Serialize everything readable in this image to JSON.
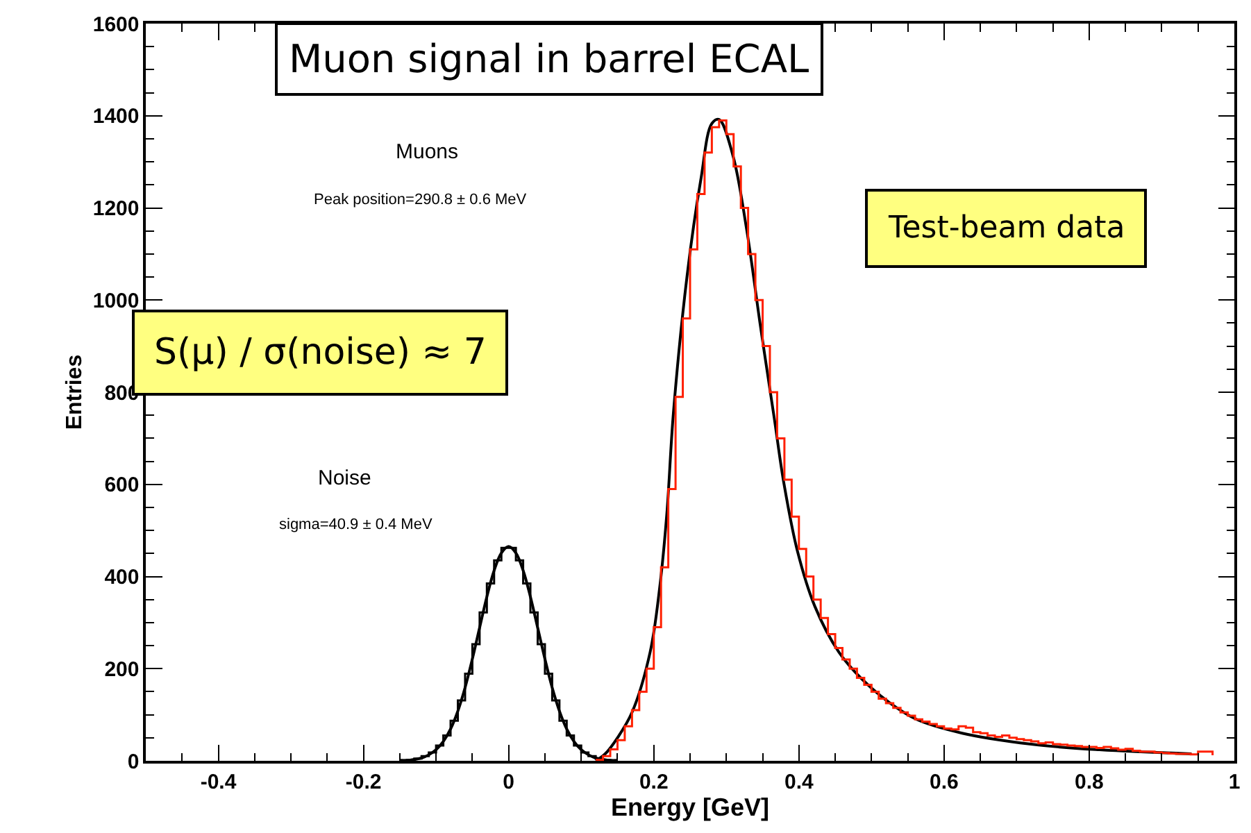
{
  "chart_data": {
    "type": "step",
    "title": "Muon signal in barrel ECAL",
    "xlabel": "Energy [GeV]",
    "ylabel": "Entries",
    "xlim": [
      -0.5,
      1
    ],
    "xticks": [
      -0.4,
      -0.2,
      0,
      0.2,
      0.4,
      0.6,
      0.8,
      1
    ],
    "ylim": [
      0,
      1600
    ],
    "yticks": [
      0,
      200,
      400,
      600,
      800,
      1000,
      1200,
      1400,
      1600
    ],
    "grid": false,
    "marker": "none",
    "annotations": [
      "Muons",
      "Peak position=290.8 ± 0.6 MeV",
      "Noise",
      "sigma=40.9 ± 0.4 MeV",
      "S(μ) / σ(noise) ≈ 7",
      "Test-beam data"
    ],
    "series": [
      {
        "type": "step",
        "color": "#000000",
        "x": [
          -0.15,
          -0.14,
          -0.13,
          -0.12,
          -0.11,
          -0.1,
          -0.09,
          -0.08,
          -0.07,
          -0.06,
          -0.05,
          -0.04,
          -0.03,
          -0.02,
          -0.01,
          0,
          0.01,
          0.02,
          0.03,
          0.04,
          0.05,
          0.06,
          0.07,
          0.08,
          0.09,
          0.1,
          0.11,
          0.12,
          0.13,
          0.14
        ],
        "values": [
          1,
          2,
          5,
          10,
          18,
          33,
          55,
          87,
          131,
          189,
          253,
          322,
          385,
          435,
          462,
          462,
          435,
          385,
          322,
          253,
          189,
          131,
          87,
          55,
          33,
          18,
          10,
          5,
          2,
          1
        ]
      },
      {
        "type": "line",
        "color": "#000000",
        "x": [
          -0.15,
          -0.14,
          -0.13,
          -0.12,
          -0.11,
          -0.1,
          -0.09,
          -0.08,
          -0.07,
          -0.06,
          -0.05,
          -0.04,
          -0.03,
          -0.02,
          -0.01,
          0,
          0.01,
          0.02,
          0.03,
          0.04,
          0.05,
          0.06,
          0.07,
          0.08,
          0.09,
          0.1,
          0.11,
          0.12,
          0.13,
          0.14,
          0.15
        ],
        "values": [
          1,
          1,
          3,
          6,
          13,
          24,
          42,
          69,
          108,
          159,
          221,
          289,
          356,
          413,
          451,
          465,
          451,
          413,
          356,
          289,
          221,
          159,
          108,
          69,
          42,
          24,
          13,
          6,
          3,
          1,
          1
        ]
      },
      {
        "type": "step",
        "color": "#ff2000",
        "x": [
          0.12,
          0.13,
          0.14,
          0.15,
          0.16,
          0.17,
          0.18,
          0.19,
          0.2,
          0.21,
          0.22,
          0.23,
          0.24,
          0.25,
          0.26,
          0.27,
          0.28,
          0.29,
          0.3,
          0.31,
          0.32,
          0.33,
          0.34,
          0.35,
          0.36,
          0.37,
          0.38,
          0.39,
          0.4,
          0.41,
          0.42,
          0.43,
          0.44,
          0.45,
          0.46,
          0.47,
          0.48,
          0.49,
          0.5,
          0.51,
          0.52,
          0.53,
          0.54,
          0.55,
          0.56,
          0.57,
          0.58,
          0.59,
          0.6,
          0.61,
          0.62,
          0.63,
          0.64,
          0.65,
          0.66,
          0.67,
          0.68,
          0.69,
          0.7,
          0.71,
          0.72,
          0.73,
          0.74,
          0.75,
          0.76,
          0.77,
          0.78,
          0.79,
          0.8,
          0.81,
          0.82,
          0.83,
          0.84,
          0.85,
          0.86,
          0.87,
          0.88,
          0.89,
          0.9,
          0.91,
          0.92,
          0.93,
          0.94,
          0.95,
          0.96,
          0.97
        ],
        "values": [
          2,
          10,
          25,
          45,
          75,
          110,
          150,
          200,
          290,
          420,
          590,
          790,
          960,
          1110,
          1230,
          1320,
          1375,
          1390,
          1360,
          1290,
          1200,
          1100,
          1000,
          900,
          800,
          700,
          610,
          530,
          460,
          400,
          350,
          310,
          275,
          245,
          220,
          200,
          180,
          165,
          150,
          135,
          125,
          115,
          105,
          98,
          90,
          85,
          80,
          75,
          70,
          68,
          75,
          72,
          62,
          60,
          55,
          52,
          55,
          50,
          47,
          45,
          42,
          38,
          40,
          36,
          35,
          33,
          32,
          30,
          30,
          28,
          30,
          27,
          24,
          26,
          22,
          20,
          20,
          18,
          17,
          16,
          15,
          15,
          14,
          20,
          20,
          12
        ]
      },
      {
        "type": "line",
        "color": "#000000",
        "x": [
          0.12,
          0.133,
          0.15,
          0.17,
          0.195,
          0.208,
          0.218,
          0.227,
          0.246,
          0.265,
          0.28,
          0.29,
          0.309,
          0.328,
          0.347,
          0.366,
          0.379,
          0.398,
          0.422,
          0.455,
          0.487,
          0.525,
          0.562,
          0.625,
          0.72,
          0.814,
          0.941
        ],
        "values": [
          0,
          15,
          50,
          105,
          236,
          374,
          536,
          754,
          1054,
          1263,
          1383,
          1392,
          1314,
          1153,
          943,
          744,
          605,
          455,
          335,
          236,
          177,
          126,
          90,
          60,
          36,
          24,
          15
        ]
      }
    ]
  }
}
